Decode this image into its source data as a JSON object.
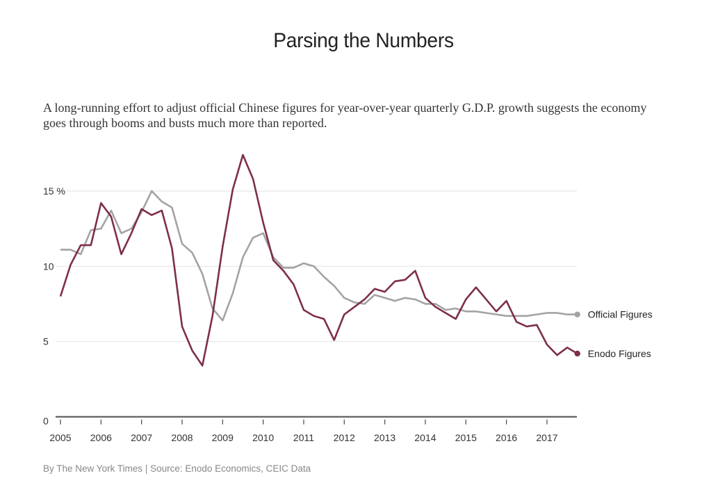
{
  "header": {
    "title": "Parsing the Numbers",
    "subtitle": "A long-running effort to adjust official Chinese figures for year-over-year quarterly G.D.P. growth suggests the economy goes through booms and busts much more than reported."
  },
  "credit": "By The New York Times | Source: Enodo Economics, CEIC Data",
  "chart_data": {
    "type": "line",
    "title": "Parsing the Numbers",
    "xlabel": "",
    "ylabel": "%",
    "ylim": [
      0,
      17.5
    ],
    "xlim": [
      2005,
      2017.75
    ],
    "grid": true,
    "y_ticks": [
      0,
      5,
      10,
      15
    ],
    "y_tick_labels": [
      "0",
      "5",
      "10",
      "15 %"
    ],
    "x_ticks": [
      2005,
      2006,
      2007,
      2008,
      2009,
      2010,
      2011,
      2012,
      2013,
      2014,
      2015,
      2016,
      2017
    ],
    "x_tick_labels": [
      "2005",
      "2006",
      "2007",
      "2008",
      "2009",
      "2010",
      "2011",
      "2012",
      "2013",
      "2014",
      "2015",
      "2016",
      "2017"
    ],
    "legend": "right, end-of-line labels",
    "x_start": 2005,
    "x_step": 0.25,
    "series": [
      {
        "name": "Official Figures",
        "color": "#a3a3a3",
        "values": [
          11.1,
          11.1,
          10.8,
          12.4,
          12.5,
          13.7,
          12.2,
          12.5,
          13.6,
          15.0,
          14.3,
          13.9,
          11.5,
          10.9,
          9.5,
          7.2,
          6.4,
          8.2,
          10.6,
          11.9,
          12.2,
          10.6,
          9.9,
          9.9,
          10.2,
          10.0,
          9.3,
          8.7,
          7.9,
          7.6,
          7.5,
          8.1,
          7.9,
          7.7,
          7.9,
          7.8,
          7.5,
          7.5,
          7.1,
          7.2,
          7.0,
          7.0,
          6.9,
          6.8,
          6.7,
          6.7,
          6.7,
          6.8,
          6.9,
          6.9,
          6.8,
          6.8
        ]
      },
      {
        "name": "Enodo Figures",
        "color": "#7d2e4b",
        "values": [
          8.0,
          10.1,
          11.4,
          11.4,
          14.2,
          13.3,
          10.8,
          12.2,
          13.8,
          13.4,
          13.7,
          11.2,
          6.0,
          4.4,
          3.4,
          6.7,
          11.3,
          15.1,
          17.4,
          15.8,
          12.9,
          10.4,
          9.7,
          8.8,
          7.1,
          6.7,
          6.5,
          5.1,
          6.8,
          7.3,
          7.8,
          8.5,
          8.3,
          9.0,
          9.1,
          9.7,
          7.9,
          7.3,
          6.9,
          6.5,
          7.8,
          8.6,
          7.8,
          7.0,
          7.7,
          6.3,
          6.0,
          6.1,
          4.8,
          4.1,
          4.6,
          4.2
        ]
      }
    ]
  }
}
